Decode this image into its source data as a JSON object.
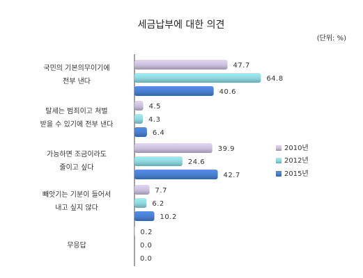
{
  "chart_data": {
    "type": "bar",
    "orientation": "horizontal",
    "title": "세금납부에 대한 의견",
    "unit_label": "(단위: %)",
    "categories": [
      [
        "국민의 기본의무이기에",
        "전부 낸다"
      ],
      [
        "탈세는 범죄이고 처벌",
        "받을 수 있기에 전부 낸다"
      ],
      [
        "가능하면 조금이라도",
        "줄이고 싶다"
      ],
      [
        "빼앗기는 기분이 들어서",
        "내고 싶지 않다"
      ],
      [
        "무응답"
      ]
    ],
    "series": [
      {
        "name": "2010년",
        "color": "#c9bfdb",
        "values": [
          47.7,
          4.5,
          39.9,
          7.7,
          0.2
        ]
      },
      {
        "name": "2012년",
        "color": "#8fd6dc",
        "values": [
          64.8,
          4.3,
          24.6,
          6.2,
          0.0
        ]
      },
      {
        "name": "2015년",
        "color": "#4a7fcf",
        "values": [
          40.6,
          6.4,
          42.7,
          10.2,
          0.0
        ]
      }
    ],
    "value_labels": [
      [
        "47.7",
        "64.8",
        "40.6"
      ],
      [
        "4.5",
        "4.3",
        "6.4"
      ],
      [
        "39.9",
        "24.6",
        "42.7"
      ],
      [
        "7.7",
        "6.2",
        "10.2"
      ],
      [
        "0.2",
        "0.0",
        "0.0"
      ]
    ],
    "legend_position": "right",
    "grid": false
  }
}
